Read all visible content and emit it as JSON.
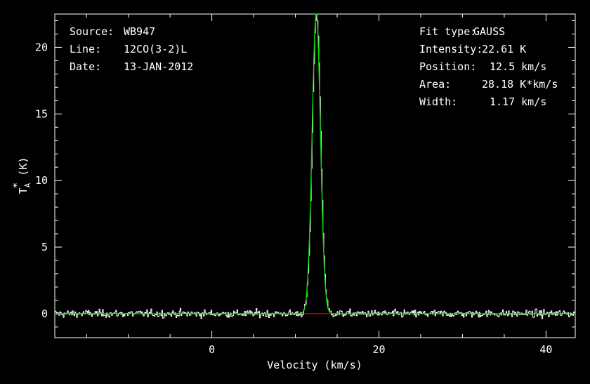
{
  "header_left": {
    "source_label": "Source:",
    "source_value": "WB947",
    "line_label": "Line:",
    "line_value": "12CO(3-2)L",
    "date_label": "Date:",
    "date_value": "13-JAN-2012"
  },
  "header_right": {
    "fit_type_label": "Fit type:",
    "fit_type_value": "GAUSS",
    "intensity_label": "Intensity:",
    "intensity_value": "22.61 K",
    "position_label": "Position:",
    "position_value": "12.5 km/s",
    "area_label": "Area:",
    "area_value": "28.18 K*km/s",
    "width_label": "Width:",
    "width_value": "1.17 km/s"
  },
  "chart_data": {
    "type": "line",
    "xlabel": "Velocity (km/s)",
    "ylabel": "T_A* (K)",
    "xlim": [
      -18.8,
      43.5
    ],
    "ylim": [
      -1.8,
      22.5
    ],
    "x_ticks": [
      0,
      20,
      40
    ],
    "y_ticks": [
      0,
      5,
      10,
      15,
      20
    ],
    "grid": false,
    "colors": {
      "spectrum": "#ffffff",
      "fit": "#00dd00",
      "baseline": "#e00000",
      "axes": "#ffffff"
    },
    "series": [
      {
        "kind": "spectrum",
        "channel_start": -18.8,
        "channel_end": 43.5,
        "channel_width": 0.1,
        "noise_rms": 0.2
      },
      {
        "kind": "gaussian_fit",
        "amplitude": 22.61,
        "center": 12.5,
        "fwhm": 1.17
      },
      {
        "kind": "baseline_segment",
        "x": [
          10.5,
          14.3
        ],
        "y": [
          0,
          0
        ]
      }
    ]
  }
}
